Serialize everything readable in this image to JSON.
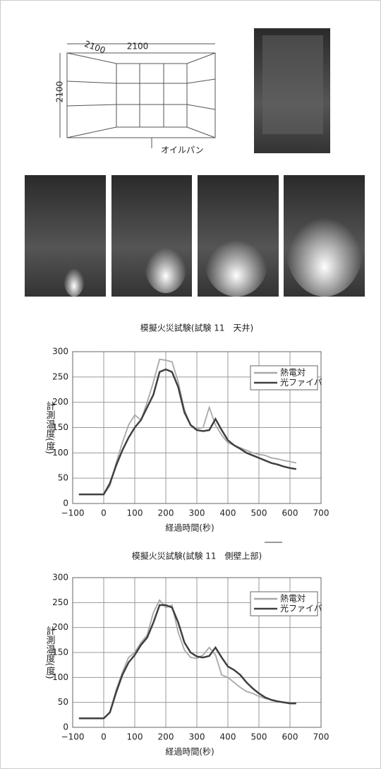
{
  "diagram": {
    "labels": [
      "2100",
      "2100",
      "2100",
      "オイルパン"
    ]
  },
  "chart_data": [
    {
      "type": "line",
      "title": "模擬火災試験(試験 11　天井)",
      "xlabel": "経過時間(秒)",
      "ylabel": "計測温度(度)",
      "x": [
        -80,
        -60,
        -40,
        -20,
        0,
        20,
        40,
        60,
        80,
        100,
        120,
        140,
        160,
        180,
        200,
        220,
        240,
        260,
        280,
        300,
        320,
        340,
        360,
        380,
        400,
        420,
        440,
        460,
        480,
        500,
        520,
        540,
        560,
        580,
        600,
        620
      ],
      "series": [
        {
          "name": "熱電対",
          "color": "#a8a8a8",
          "values": [
            18,
            18,
            18,
            18,
            18,
            35,
            80,
            120,
            155,
            175,
            165,
            200,
            240,
            285,
            283,
            280,
            240,
            185,
            155,
            148,
            150,
            190,
            155,
            135,
            120,
            115,
            110,
            105,
            100,
            97,
            95,
            90,
            88,
            85,
            83,
            80
          ]
        },
        {
          "name": "光ファイバ",
          "color": "#404040",
          "values": [
            18,
            18,
            18,
            18,
            18,
            40,
            75,
            105,
            130,
            150,
            165,
            190,
            215,
            260,
            265,
            260,
            230,
            180,
            155,
            145,
            143,
            145,
            167,
            145,
            125,
            115,
            108,
            100,
            95,
            90,
            85,
            80,
            77,
            73,
            70,
            68
          ]
        }
      ],
      "xlim": [
        -100,
        700
      ],
      "xticks": [
        {
          "value": -100,
          "label": "−100"
        },
        0,
        100,
        200,
        300,
        400,
        500,
        600,
        700
      ],
      "ylim": [
        0,
        300
      ],
      "yticks": [
        0,
        50,
        100,
        150,
        200,
        250,
        300
      ],
      "grid": true,
      "legend": "upper right"
    },
    {
      "type": "line",
      "title": "模擬火災試験(試験 11　側壁上部)",
      "xlabel": "経過時間(秒)",
      "ylabel": "計測温度(度)",
      "x": [
        -80,
        -60,
        -40,
        -20,
        0,
        20,
        40,
        60,
        80,
        100,
        120,
        140,
        160,
        180,
        200,
        220,
        240,
        260,
        280,
        300,
        320,
        340,
        360,
        380,
        400,
        420,
        440,
        460,
        480,
        500,
        520,
        540,
        560,
        580,
        600,
        620
      ],
      "series": [
        {
          "name": "熱電対",
          "color": "#a8a8a8",
          "values": [
            18,
            18,
            18,
            18,
            18,
            30,
            75,
            110,
            140,
            150,
            170,
            185,
            230,
            255,
            240,
            245,
            190,
            155,
            140,
            138,
            145,
            160,
            145,
            105,
            100,
            90,
            80,
            72,
            68,
            62,
            58,
            55,
            52,
            50,
            50,
            48
          ]
        },
        {
          "name": "光ファイバ",
          "color": "#404040",
          "values": [
            18,
            18,
            18,
            18,
            18,
            30,
            70,
            105,
            130,
            145,
            165,
            180,
            210,
            245,
            245,
            240,
            210,
            170,
            150,
            142,
            140,
            143,
            160,
            140,
            122,
            115,
            105,
            90,
            78,
            68,
            60,
            55,
            52,
            50,
            48,
            48
          ]
        }
      ],
      "xlim": [
        -100,
        700
      ],
      "xticks": [
        {
          "value": -100,
          "label": "−100"
        },
        0,
        100,
        200,
        300,
        400,
        500,
        600,
        700
      ],
      "ylim": [
        0,
        300
      ],
      "yticks": [
        0,
        50,
        100,
        150,
        200,
        250,
        300
      ],
      "grid": true,
      "legend": "upper right"
    }
  ]
}
